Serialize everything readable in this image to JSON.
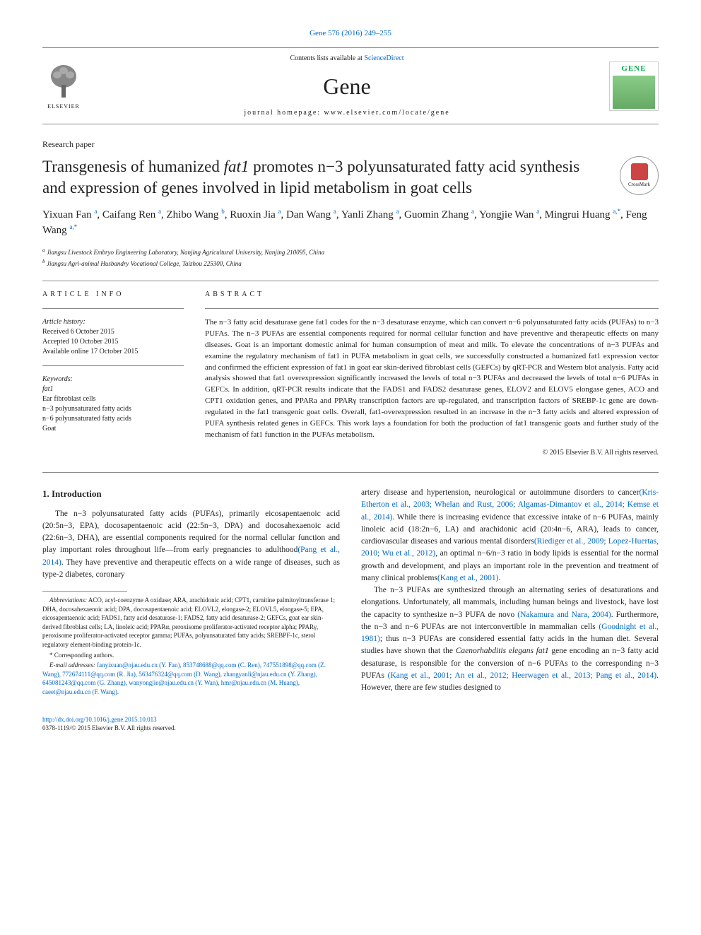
{
  "header": {
    "citation": "Gene 576 (2016) 249–255",
    "contents_line": "Contents lists available at ",
    "sciencedirect": "ScienceDirect",
    "journal_name": "Gene",
    "homepage": "journal homepage: www.elsevier.com/locate/gene",
    "elsevier": "ELSEVIER",
    "gene_badge": "GENE"
  },
  "paper_type": "Research paper",
  "title_parts": {
    "pre": "Transgenesis of humanized ",
    "italic1": "fat1",
    "post": " promotes n−3 polyunsaturated fatty acid synthesis and expression of genes involved in lipid metabolism in goat cells"
  },
  "crossmark": "CrossMark",
  "authors": [
    {
      "name": "Yixuan Fan",
      "sup": "a"
    },
    {
      "name": "Caifang Ren",
      "sup": "a"
    },
    {
      "name": "Zhibo Wang",
      "sup": "b"
    },
    {
      "name": "Ruoxin Jia",
      "sup": "a"
    },
    {
      "name": "Dan Wang",
      "sup": "a"
    },
    {
      "name": "Yanli Zhang",
      "sup": "a"
    },
    {
      "name": "Guomin Zhang",
      "sup": "a"
    },
    {
      "name": "Yongjie Wan",
      "sup": "a"
    },
    {
      "name": "Mingrui Huang",
      "sup": "a,*"
    },
    {
      "name": "Feng Wang",
      "sup": "a,*"
    }
  ],
  "affiliations": [
    {
      "sup": "a",
      "text": "Jiangsu Livestock Embryo Engineering Laboratory, Nanjing Agricultural University, Nanjing 210095, China"
    },
    {
      "sup": "b",
      "text": "Jiangsu Agri-animal Husbandry Vocational College, Taizhou 225300, China"
    }
  ],
  "article_info": {
    "heading": "ARTICLE INFO",
    "history_label": "Article history:",
    "received": "Received 6 October 2015",
    "accepted": "Accepted 10 October 2015",
    "online": "Available online 17 October 2015",
    "keywords_label": "Keywords:",
    "keywords": [
      "fat1",
      "Ear fibroblast cells",
      "n−3 polyunsaturated fatty acids",
      "n−6 polyunsaturated fatty acids",
      "Goat"
    ]
  },
  "abstract": {
    "heading": "ABSTRACT",
    "text": "The n−3 fatty acid desaturase gene fat1 codes for the n−3 desaturase enzyme, which can convert n−6 polyunsaturated fatty acids (PUFAs) to n−3 PUFAs. The n−3 PUFAs are essential components required for normal cellular function and have preventive and therapeutic effects on many diseases. Goat is an important domestic animal for human consumption of meat and milk. To elevate the concentrations of n−3 PUFAs and examine the regulatory mechanism of fat1 in PUFA metabolism in goat cells, we successfully constructed a humanized fat1 expression vector and confirmed the efficient expression of fat1 in goat ear skin-derived fibroblast cells (GEFCs) by qRT-PCR and Western blot analysis. Fatty acid analysis showed that fat1 overexpression significantly increased the levels of total n−3 PUFAs and decreased the levels of total n−6 PUFAs in GEFCs. In addition, qRT-PCR results indicate that the FADS1 and FADS2 desaturase genes, ELOV2 and ELOV5 elongase genes, ACO and CPT1 oxidation genes, and PPARa and PPARγ transcription factors are up-regulated, and transcription factors of SREBP-1c gene are down-regulated in the fat1 transgenic goat cells. Overall, fat1-overexpression resulted in an increase in the n−3 fatty acids and altered expression of PUFA synthesis related genes in GEFCs. This work lays a foundation for both the production of fat1 transgenic goats and further study of the mechanism of fat1 function in the PUFAs metabolism.",
    "copyright": "© 2015 Elsevier B.V. All rights reserved."
  },
  "intro": {
    "heading": "1. Introduction",
    "p1_pre": "The n−3 polyunsaturated fatty acids (PUFAs), primarily eicosapentaenoic acid (20:5n−3, EPA), docosapentaenoic acid (22:5n−3, DPA) and docosahexaenoic acid (22:6n−3, DHA), are essential components required for the normal cellular function and play important roles throughout life—from early pregnancies to adulthood",
    "p1_cite1": "(Pang et al., 2014)",
    "p1_post": ". They have preventive and therapeutic effects on a wide range of diseases, such as type-2 diabetes, coronary",
    "p2_pre": "artery disease and hypertension, neurological or autoimmune disorders to cancer",
    "p2_cite1": "(Kris-Etherton et al., 2003; Whelan and Rust, 2006; Algamas-Dimantov et al., 2014; Kemse et al., 2014)",
    "p2_mid1": ". While there is increasing evidence that excessive intake of n−6 PUFAs, mainly linoleic acid (18:2n−6, LA) and arachidonic acid (20:4n−6, ARA), leads to cancer, cardiovascular diseases and various mental disorders",
    "p2_cite2": "(Riediger et al., 2009; Lopez-Huertas, 2010; Wu et al., 2012)",
    "p2_mid2": ", an optimal n−6/n−3 ratio in body lipids is essential for the normal growth and development, and plays an important role in the prevention and treatment of many clinical problems",
    "p2_cite3": "(Kang et al., 2001)",
    "p2_end": ".",
    "p3_pre": "The n−3 PUFAs are synthesized through an alternating series of desaturations and elongations. Unfortunately, all mammals, including human beings and livestock, have lost the capacity to synthesize n−3 PUFA de novo ",
    "p3_cite1": "(Nakamura and Nara, 2004)",
    "p3_mid1": ". Furthermore, the n−3 and n−6 PUFAs are not interconvertible in mammalian cells ",
    "p3_cite2": "(Goodnight et al., 1981)",
    "p3_mid2": "; thus n−3 PUFAs are considered essential fatty acids in the human diet. Several studies have shown that the ",
    "p3_italic": "Caenorhabditis elegans fat1",
    "p3_mid3": " gene encoding an n−3 fatty acid desaturase, is responsible for the conversion of n−6 PUFAs to the corresponding n−3 PUFAs ",
    "p3_cite3": "(Kang et al., 2001; An et al., 2012; Heerwagen et al., 2013; Pang et al., 2014)",
    "p3_end": ". However, there are few studies designed to"
  },
  "abbreviations": {
    "label": "Abbreviations:",
    "text": " ACO, acyl-coenzyme A oxidase; ARA, arachidonic acid; CPT1, carnitine palmitoyltransferase 1; DHA, docosahexaenoic acid; DPA, docosapentaenoic acid; ELOVL2, elongase-2; ELOVL5, elongase-5; EPA, eicosapentaenoic acid; FADS1, fatty acid desaturase-1; FADS2, fatty acid desaturase-2; GEFCs, goat ear skin-derived fibroblast cells; LA, linoleic acid; PPARα, peroxisome proliferator-activated receptor alpha; PPARγ, peroxisome proliferator-activated receptor gamma; PUFAs, polyunsaturated fatty acids; SREBPF-1c, sterol regulatory element-binding protein-1c."
  },
  "corresponding": "* Corresponding authors.",
  "emails": {
    "label": "E-mail addresses: ",
    "list": "fanyixuan@njau.edu.cn (Y. Fan), 853748688@qq.com (C. Ren), 747551898@qq.com (Z. Wang), 772674111@qq.com (R. Jia), 563476324@qq.com (D. Wang), zhangyanli@njau.edu.cn (Y. Zhang), 645081243@qq.com (G. Zhang), wanyongjie@njau.edu.cn (Y. Wan), hmr@njau.edu.cn (M. Huang), caeet@njau.edu.cn (F. Wang)."
  },
  "footer": {
    "doi": "http://dx.doi.org/10.1016/j.gene.2015.10.013",
    "issn": "0378-1119/© 2015 Elsevier B.V. All rights reserved."
  },
  "colors": {
    "link": "#0066cc",
    "text": "#222222",
    "rule": "#888888"
  }
}
